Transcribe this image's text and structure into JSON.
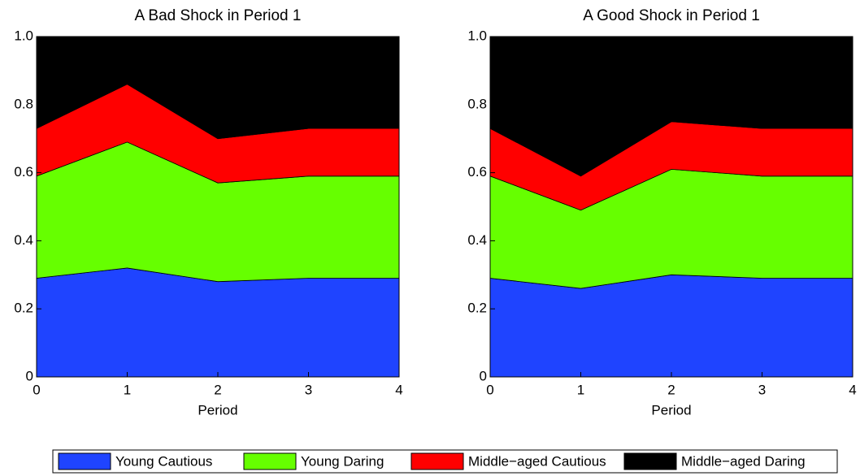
{
  "chart_data": [
    {
      "type": "stacked-area",
      "title": "A Bad Shock in Period 1",
      "xlabel": "Period",
      "x": [
        0,
        1,
        2,
        3,
        4
      ],
      "xlim": [
        0,
        4
      ],
      "xticks": [
        0,
        1,
        2,
        3,
        4
      ],
      "ylim": [
        0,
        1
      ],
      "yticks": [
        0,
        0.2,
        0.4,
        0.6,
        0.8,
        {
          "value": 1,
          "label": "1.0"
        }
      ],
      "series": [
        {
          "name": "Young Cautious",
          "color": "#1f44ff",
          "values": [
            0.29,
            0.32,
            0.28,
            0.29,
            0.29
          ]
        },
        {
          "name": "Young Daring",
          "color": "#66ff00",
          "values": [
            0.3,
            0.37,
            0.29,
            0.3,
            0.3
          ]
        },
        {
          "name": "Middle−aged Cautious",
          "color": "#ff0000",
          "values": [
            0.14,
            0.17,
            0.13,
            0.14,
            0.14
          ]
        },
        {
          "name": "Middle−aged Daring",
          "color": "#000000",
          "values": [
            0.27,
            0.14,
            0.3,
            0.27,
            0.27
          ]
        }
      ]
    },
    {
      "type": "stacked-area",
      "title": "A Good Shock in Period 1",
      "xlabel": "Period",
      "x": [
        0,
        1,
        2,
        3,
        4
      ],
      "xlim": [
        0,
        4
      ],
      "xticks": [
        0,
        1,
        2,
        3,
        4
      ],
      "ylim": [
        0,
        1
      ],
      "yticks": [
        0,
        0.2,
        0.4,
        0.6,
        0.8,
        {
          "value": 1,
          "label": "1.0"
        }
      ],
      "series": [
        {
          "color": "#1f44ff",
          "values": [
            0.29,
            0.26,
            0.3,
            0.29,
            0.29
          ]
        },
        {
          "color": "#66ff00",
          "values": [
            0.3,
            0.23,
            0.31,
            0.3,
            0.3
          ]
        },
        {
          "color": "#ff0000",
          "values": [
            0.14,
            0.1,
            0.14,
            0.14,
            0.14
          ]
        },
        {
          "color": "#000000",
          "values": [
            0.27,
            0.41,
            0.25,
            0.27,
            0.27
          ]
        }
      ]
    }
  ]
}
